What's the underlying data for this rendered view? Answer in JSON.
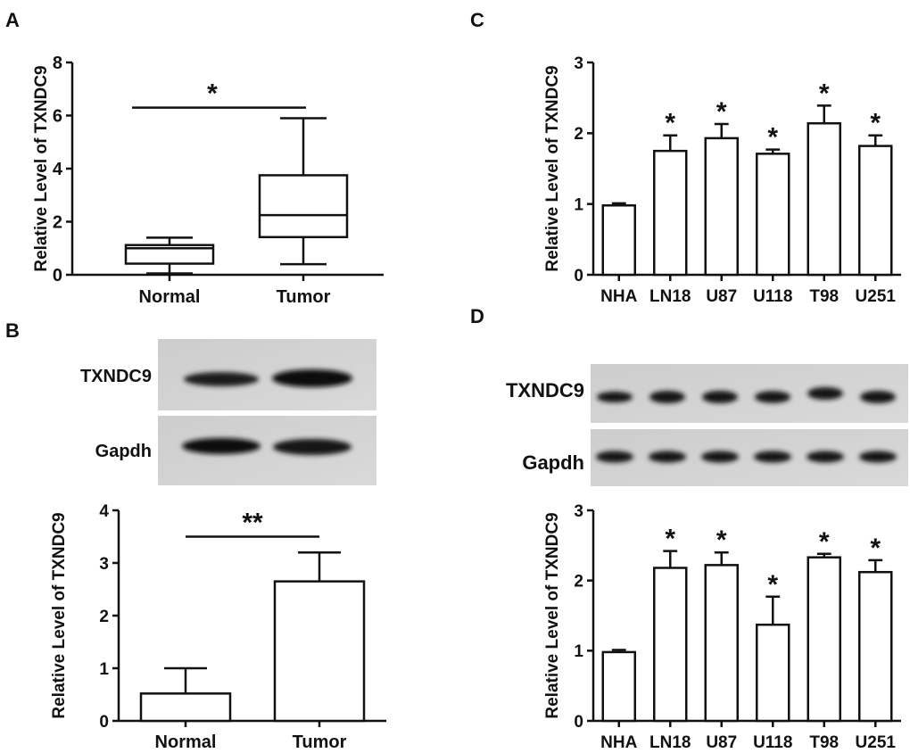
{
  "panels": {
    "a": "A",
    "b": "B",
    "c": "C",
    "d": "D"
  },
  "blots": {
    "b": {
      "rows": [
        "TXNDC9",
        "Gapdh"
      ]
    },
    "d": {
      "rows": [
        "TXNDC9",
        "Gapdh"
      ]
    }
  },
  "chart_data": [
    {
      "panel": "A",
      "type": "box",
      "ylabel": "Relative Level  of TXNDC9",
      "categories": [
        "Normal",
        "Tumor"
      ],
      "yticks": [
        0,
        2,
        4,
        6,
        8
      ],
      "ylim": [
        0,
        8
      ],
      "boxes": [
        {
          "min": 0.05,
          "q1": 0.42,
          "median": 1.0,
          "q3": 1.12,
          "max": 1.4
        },
        {
          "min": 0.4,
          "q1": 1.42,
          "median": 2.25,
          "q3": 3.75,
          "max": 5.9
        }
      ],
      "significance": [
        {
          "from": 0,
          "to": 1,
          "label": "*",
          "y": 6.3
        }
      ]
    },
    {
      "panel": "B",
      "type": "bar",
      "ylabel": "Relative Level  of TXNDC9",
      "categories": [
        "Normal",
        "Tumor"
      ],
      "yticks": [
        0,
        1,
        2,
        3,
        4
      ],
      "ylim": [
        0,
        4
      ],
      "values": [
        0.52,
        2.65
      ],
      "errors": [
        0.48,
        0.55
      ],
      "significance": [
        {
          "from": 0,
          "to": 1,
          "label": "**",
          "y": 3.5
        }
      ]
    },
    {
      "panel": "C",
      "type": "bar",
      "ylabel": "Relative Level  of TXNDC9",
      "categories": [
        "NHA",
        "LN18",
        "U87",
        "U118",
        "T98",
        "U251"
      ],
      "yticks": [
        0,
        1,
        2,
        3
      ],
      "ylim": [
        0,
        3
      ],
      "values": [
        0.98,
        1.75,
        1.93,
        1.71,
        2.14,
        1.82
      ],
      "errors": [
        0.03,
        0.22,
        0.2,
        0.06,
        0.25,
        0.15
      ],
      "stars": [
        "",
        "*",
        "*",
        "*",
        "*",
        "*"
      ]
    },
    {
      "panel": "D",
      "type": "bar",
      "ylabel": "Relative Level  of TXNDC9",
      "categories": [
        "NHA",
        "LN18",
        "U87",
        "U118",
        "T98",
        "U251"
      ],
      "yticks": [
        0,
        1,
        2,
        3
      ],
      "ylim": [
        0,
        3
      ],
      "values": [
        0.98,
        2.18,
        2.22,
        1.37,
        2.33,
        2.12
      ],
      "errors": [
        0.03,
        0.24,
        0.18,
        0.4,
        0.05,
        0.17
      ],
      "stars": [
        "",
        "*",
        "*",
        "*",
        "*",
        "*"
      ]
    }
  ]
}
